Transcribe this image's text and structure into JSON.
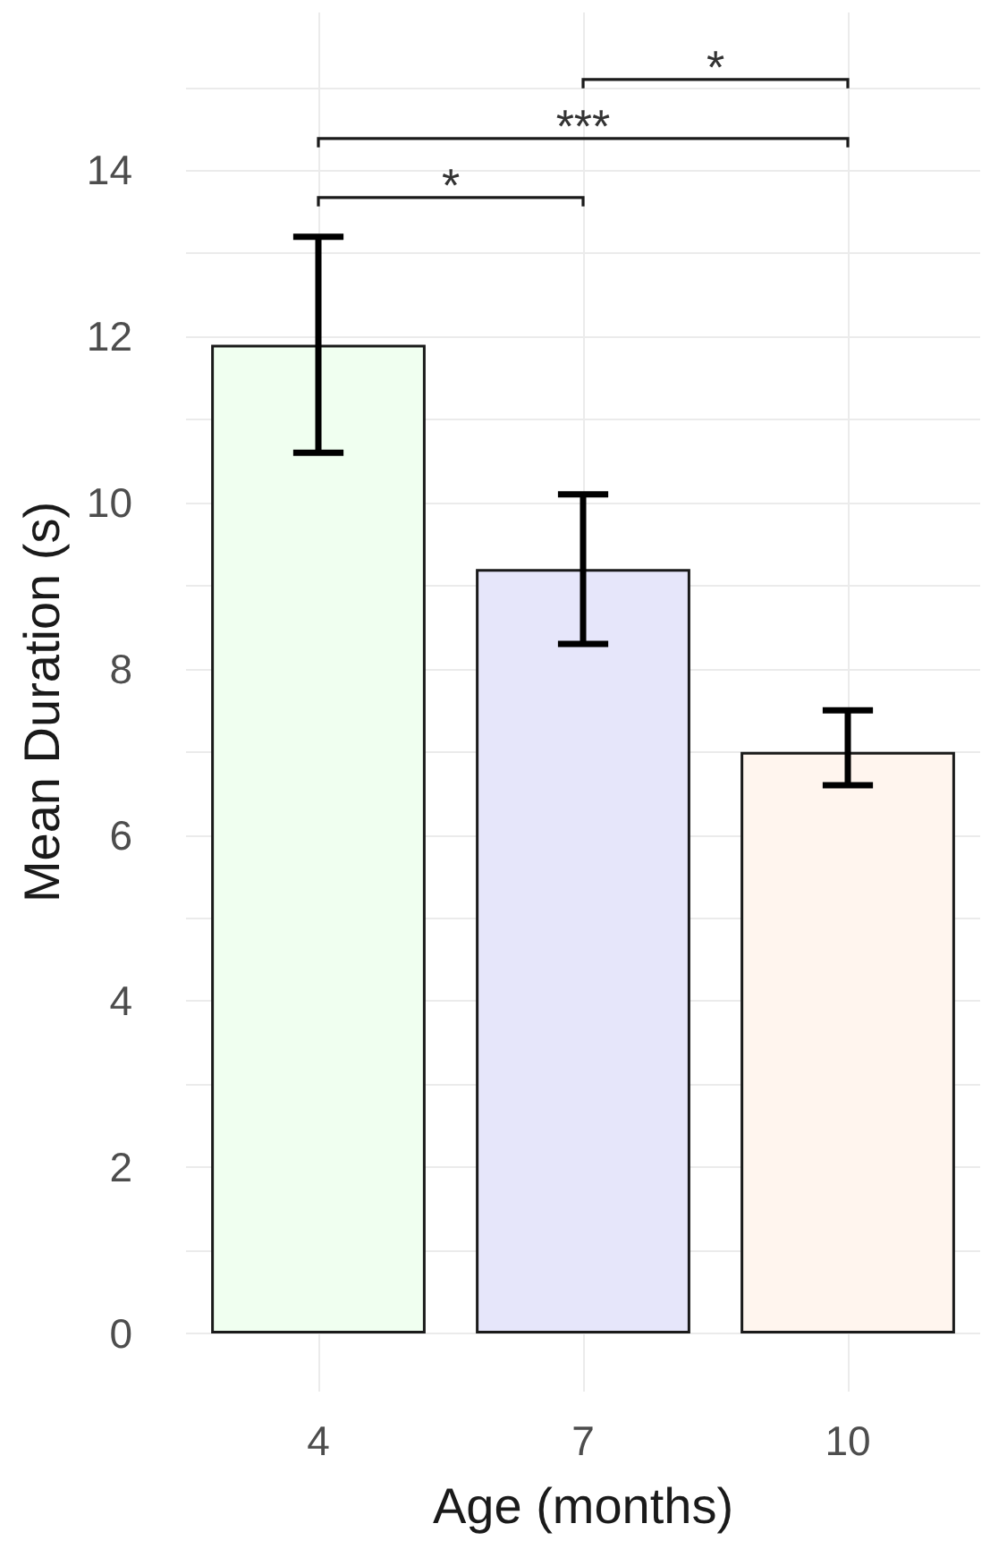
{
  "chart_data": {
    "type": "bar",
    "xlabel": "Age (months)",
    "ylabel": "Mean Duration (s)",
    "categories": [
      "4",
      "7",
      "10"
    ],
    "values": [
      11.9,
      9.2,
      7.0
    ],
    "colors": [
      "#f0fff0",
      "#e6e6fa",
      "#fff5ee"
    ],
    "errors": [
      [
        10.6,
        13.2
      ],
      [
        8.3,
        10.1
      ],
      [
        6.6,
        7.5
      ]
    ],
    "ylim": [
      -0.7,
      15.9
    ],
    "yticks": [
      0,
      {
        "value": 1,
        "label": null
      },
      2,
      {
        "value": 3,
        "label": null
      },
      4,
      {
        "value": 5,
        "label": null
      },
      6,
      {
        "value": 7,
        "label": null
      },
      8,
      {
        "value": 9,
        "label": null
      },
      10,
      {
        "value": 11,
        "label": null
      },
      12,
      {
        "value": 13,
        "label": null
      },
      14,
      {
        "value": 15,
        "label": null
      }
    ],
    "grid": true,
    "annotations": [
      "*",
      "***",
      "*"
    ]
  }
}
